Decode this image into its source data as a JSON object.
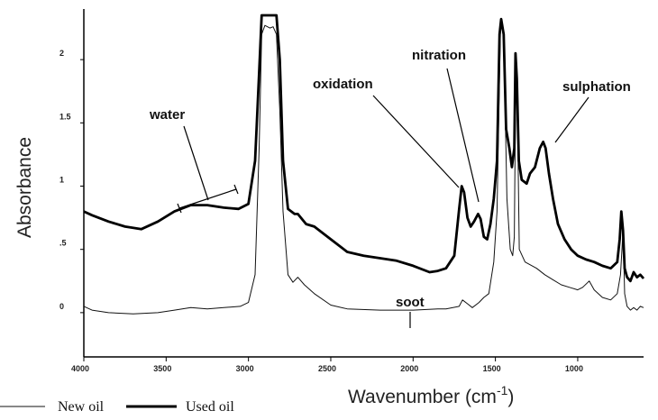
{
  "chart_data": {
    "type": "line",
    "xlabel": "Wavenumber (cm",
    "xlabel_sup": "-1",
    "xlabel_close": ")",
    "ylabel": "Absorbance",
    "xlim": [
      4000,
      600
    ],
    "ylim": [
      -0.35,
      2.4
    ],
    "x_ticks": [
      {
        "value": 4000,
        "label": "4000"
      },
      {
        "value": 3500,
        "label": "3500"
      },
      {
        "value": 3000,
        "label": "3000"
      },
      {
        "value": 2500,
        "label": "2500"
      },
      {
        "value": 2000,
        "label": "2000"
      },
      {
        "value": 1500,
        "label": "1500"
      },
      {
        "value": 1000,
        "label": "1000"
      }
    ],
    "y_ticks": [
      {
        "value": 0,
        "label": "0"
      },
      {
        "value": 0.5,
        "label": ".5"
      },
      {
        "value": 1,
        "label": "1"
      },
      {
        "value": 1.5,
        "label": "1.5"
      },
      {
        "value": 2,
        "label": "2"
      }
    ],
    "series": [
      {
        "name": "New oil",
        "style": "thin",
        "color": "#111111",
        "points": [
          [
            4000,
            0.05
          ],
          [
            3950,
            0.02
          ],
          [
            3850,
            0.0
          ],
          [
            3700,
            -0.01
          ],
          [
            3550,
            0.0
          ],
          [
            3450,
            0.02
          ],
          [
            3350,
            0.04
          ],
          [
            3250,
            0.03
          ],
          [
            3150,
            0.04
          ],
          [
            3050,
            0.05
          ],
          [
            3000,
            0.08
          ],
          [
            2960,
            0.3
          ],
          [
            2935,
            1.3
          ],
          [
            2920,
            2.2
          ],
          [
            2900,
            2.27
          ],
          [
            2870,
            2.25
          ],
          [
            2850,
            2.26
          ],
          [
            2830,
            2.2
          ],
          [
            2810,
            1.6
          ],
          [
            2790,
            0.8
          ],
          [
            2760,
            0.3
          ],
          [
            2730,
            0.24
          ],
          [
            2700,
            0.28
          ],
          [
            2660,
            0.22
          ],
          [
            2600,
            0.15
          ],
          [
            2500,
            0.06
          ],
          [
            2400,
            0.03
          ],
          [
            2200,
            0.02
          ],
          [
            2000,
            0.02
          ],
          [
            1850,
            0.03
          ],
          [
            1800,
            0.03
          ],
          [
            1720,
            0.05
          ],
          [
            1700,
            0.1
          ],
          [
            1670,
            0.07
          ],
          [
            1640,
            0.04
          ],
          [
            1600,
            0.08
          ],
          [
            1570,
            0.12
          ],
          [
            1540,
            0.15
          ],
          [
            1510,
            0.4
          ],
          [
            1490,
            0.8
          ],
          [
            1470,
            2.2
          ],
          [
            1462,
            2.32
          ],
          [
            1450,
            2.2
          ],
          [
            1430,
            0.9
          ],
          [
            1410,
            0.5
          ],
          [
            1395,
            0.45
          ],
          [
            1385,
            0.6
          ],
          [
            1375,
            2.05
          ],
          [
            1368,
            1.8
          ],
          [
            1355,
            0.5
          ],
          [
            1320,
            0.4
          ],
          [
            1250,
            0.35
          ],
          [
            1200,
            0.3
          ],
          [
            1150,
            0.26
          ],
          [
            1100,
            0.22
          ],
          [
            1050,
            0.2
          ],
          [
            1000,
            0.18
          ],
          [
            970,
            0.2
          ],
          [
            930,
            0.25
          ],
          [
            900,
            0.18
          ],
          [
            850,
            0.12
          ],
          [
            800,
            0.1
          ],
          [
            760,
            0.15
          ],
          [
            740,
            0.3
          ],
          [
            725,
            0.65
          ],
          [
            715,
            0.15
          ],
          [
            700,
            0.05
          ],
          [
            680,
            0.02
          ],
          [
            660,
            0.04
          ],
          [
            640,
            0.02
          ],
          [
            620,
            0.05
          ],
          [
            600,
            0.04
          ]
        ]
      },
      {
        "name": "Used oil",
        "style": "thick",
        "color": "#000000",
        "points": [
          [
            4000,
            0.8
          ],
          [
            3950,
            0.77
          ],
          [
            3850,
            0.72
          ],
          [
            3750,
            0.68
          ],
          [
            3650,
            0.66
          ],
          [
            3550,
            0.72
          ],
          [
            3450,
            0.8
          ],
          [
            3350,
            0.85
          ],
          [
            3250,
            0.85
          ],
          [
            3150,
            0.83
          ],
          [
            3060,
            0.82
          ],
          [
            3000,
            0.86
          ],
          [
            2960,
            1.2
          ],
          [
            2935,
            1.9
          ],
          [
            2920,
            2.35
          ],
          [
            2880,
            2.35
          ],
          [
            2860,
            2.35
          ],
          [
            2830,
            2.35
          ],
          [
            2810,
            2.0
          ],
          [
            2790,
            1.2
          ],
          [
            2760,
            0.82
          ],
          [
            2720,
            0.78
          ],
          [
            2700,
            0.78
          ],
          [
            2650,
            0.7
          ],
          [
            2600,
            0.68
          ],
          [
            2500,
            0.58
          ],
          [
            2400,
            0.48
          ],
          [
            2300,
            0.45
          ],
          [
            2200,
            0.43
          ],
          [
            2100,
            0.41
          ],
          [
            2000,
            0.37
          ],
          [
            1900,
            0.32
          ],
          [
            1850,
            0.33
          ],
          [
            1800,
            0.35
          ],
          [
            1750,
            0.45
          ],
          [
            1720,
            0.82
          ],
          [
            1705,
            1.0
          ],
          [
            1690,
            0.95
          ],
          [
            1670,
            0.75
          ],
          [
            1650,
            0.68
          ],
          [
            1630,
            0.72
          ],
          [
            1605,
            0.78
          ],
          [
            1590,
            0.74
          ],
          [
            1570,
            0.6
          ],
          [
            1550,
            0.58
          ],
          [
            1530,
            0.7
          ],
          [
            1510,
            0.9
          ],
          [
            1490,
            1.2
          ],
          [
            1475,
            2.2
          ],
          [
            1465,
            2.32
          ],
          [
            1450,
            2.2
          ],
          [
            1435,
            1.45
          ],
          [
            1415,
            1.3
          ],
          [
            1400,
            1.15
          ],
          [
            1385,
            1.3
          ],
          [
            1378,
            2.05
          ],
          [
            1370,
            1.85
          ],
          [
            1358,
            1.2
          ],
          [
            1340,
            1.05
          ],
          [
            1310,
            1.02
          ],
          [
            1290,
            1.1
          ],
          [
            1260,
            1.15
          ],
          [
            1230,
            1.3
          ],
          [
            1210,
            1.35
          ],
          [
            1195,
            1.3
          ],
          [
            1175,
            1.1
          ],
          [
            1150,
            0.9
          ],
          [
            1120,
            0.7
          ],
          [
            1080,
            0.58
          ],
          [
            1040,
            0.5
          ],
          [
            1000,
            0.45
          ],
          [
            950,
            0.42
          ],
          [
            900,
            0.4
          ],
          [
            850,
            0.37
          ],
          [
            800,
            0.35
          ],
          [
            760,
            0.4
          ],
          [
            745,
            0.58
          ],
          [
            735,
            0.8
          ],
          [
            725,
            0.65
          ],
          [
            715,
            0.35
          ],
          [
            700,
            0.28
          ],
          [
            680,
            0.25
          ],
          [
            660,
            0.32
          ],
          [
            640,
            0.28
          ],
          [
            620,
            0.3
          ],
          [
            600,
            0.27
          ]
        ]
      }
    ],
    "annotations": [
      {
        "label": "water"
      },
      {
        "label": "oxidation"
      },
      {
        "label": "nitration"
      },
      {
        "label": "sulphation"
      },
      {
        "label": "soot"
      }
    ],
    "legend": {
      "position": "bottom-left",
      "items": [
        {
          "label": "New oil",
          "style": "thin"
        },
        {
          "label": "Used oil",
          "style": "thick"
        }
      ]
    },
    "grid": false
  }
}
